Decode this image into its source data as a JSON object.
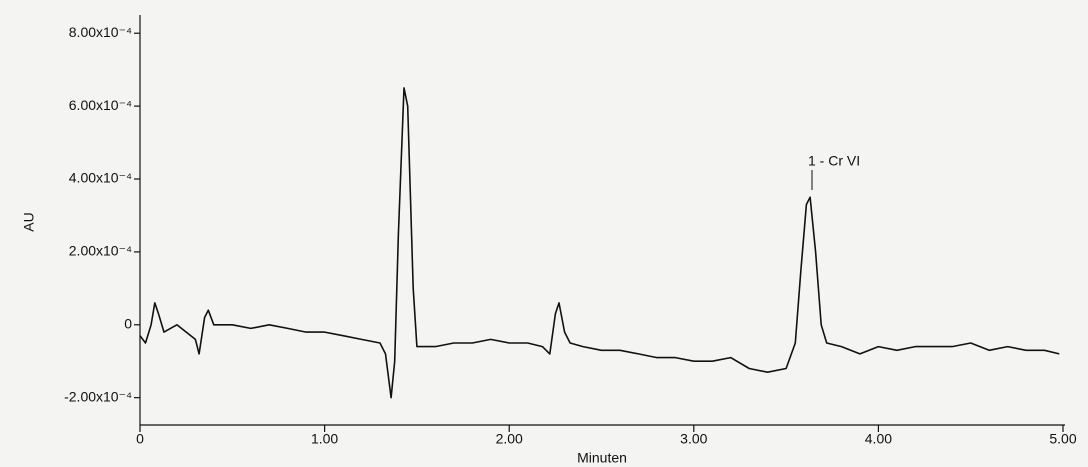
{
  "chart_data": {
    "type": "line",
    "x_label": "Minuten",
    "y_label": "AU",
    "annotations": [
      "1 - Cr VI"
    ],
    "xlim": [
      0,
      5
    ],
    "ylim": [
      -0.000275,
      0.00085
    ],
    "xticks": [
      0,
      {
        "value": 1,
        "label": "1.00"
      },
      {
        "value": 2,
        "label": "2.00"
      },
      {
        "value": 3,
        "label": "3.00"
      },
      {
        "value": 4,
        "label": "4.00"
      },
      {
        "value": 5,
        "label": "5.00"
      }
    ],
    "yticks": [
      {
        "value": -0.0002,
        "label": "-2.00x10⁻⁴"
      },
      0,
      {
        "value": 0.0002,
        "label": "2.00x10⁻⁴"
      },
      {
        "value": 0.0004,
        "label": "4.00x10⁻⁴"
      },
      {
        "value": 0.0006,
        "label": "6.00x10⁻⁴"
      },
      {
        "value": 0.0008,
        "label": "8.00x10⁻⁴"
      }
    ],
    "x": [
      0,
      0.03,
      0.06,
      0.08,
      0.1,
      0.13,
      0.2,
      0.3,
      0.32,
      0.35,
      0.37,
      0.4,
      0.5,
      0.6,
      0.7,
      0.8,
      0.9,
      1.0,
      1.1,
      1.2,
      1.3,
      1.33,
      1.36,
      1.38,
      1.4,
      1.43,
      1.45,
      1.48,
      1.5,
      1.6,
      1.7,
      1.8,
      1.9,
      2.0,
      2.1,
      2.18,
      2.22,
      2.25,
      2.27,
      2.3,
      2.33,
      2.4,
      2.5,
      2.6,
      2.7,
      2.8,
      2.9,
      3.0,
      3.1,
      3.2,
      3.3,
      3.4,
      3.5,
      3.55,
      3.58,
      3.61,
      3.63,
      3.66,
      3.69,
      3.72,
      3.8,
      3.9,
      4.0,
      4.1,
      4.2,
      4.3,
      4.4,
      4.5,
      4.6,
      4.7,
      4.8,
      4.9,
      4.98
    ],
    "series": [
      {
        "color": "#111111",
        "values": [
          -3e-05,
          -5e-05,
          0,
          6e-05,
          3e-05,
          -2e-05,
          0,
          -4e-05,
          -8e-05,
          2e-05,
          4e-05,
          0,
          0,
          -1e-05,
          0,
          -1e-05,
          -2e-05,
          -2e-05,
          -3e-05,
          -4e-05,
          -5e-05,
          -8e-05,
          -0.0002,
          -0.0001,
          0.00025,
          0.00065,
          0.0006,
          0.0001,
          -6e-05,
          -6e-05,
          -5e-05,
          -5e-05,
          -4e-05,
          -5e-05,
          -5e-05,
          -6e-05,
          -8e-05,
          3e-05,
          6e-05,
          -2e-05,
          -5e-05,
          -6e-05,
          -7e-05,
          -7e-05,
          -8e-05,
          -9e-05,
          -9e-05,
          -0.0001,
          -0.0001,
          -9e-05,
          -0.00012,
          -0.00013,
          -0.00012,
          -5e-05,
          0.00015,
          0.00033,
          0.00035,
          0.0002,
          0,
          -5e-05,
          -6e-05,
          -8e-05,
          -6e-05,
          -7e-05,
          -6e-05,
          -6e-05,
          -6e-05,
          -5e-05,
          -7e-05,
          -6e-05,
          -7e-05,
          -7e-05,
          -8e-05
        ]
      }
    ]
  }
}
